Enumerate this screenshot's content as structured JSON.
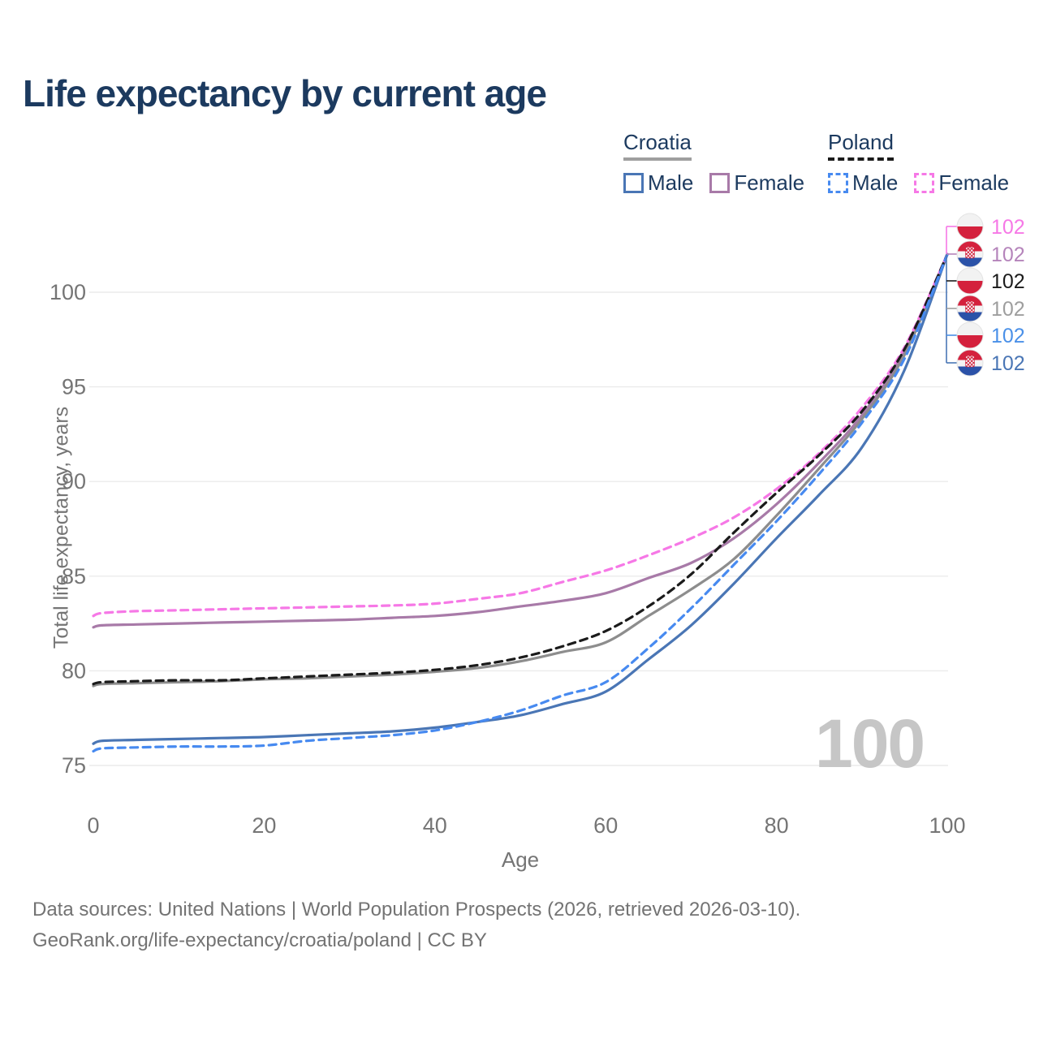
{
  "title": "Life expectancy by current age",
  "watermark": "100",
  "legend": {
    "groups": [
      {
        "country": "Croatia",
        "underline_color": "#9e9e9e",
        "underline_style": "solid",
        "items": [
          {
            "label": "Male",
            "color": "#4a76b5",
            "style": "solid"
          },
          {
            "label": "Female",
            "color": "#a87aa8",
            "style": "solid"
          }
        ]
      },
      {
        "country": "Poland",
        "underline_color": "#1b1b1b",
        "underline_style": "dashed",
        "items": [
          {
            "label": "Male",
            "color": "#478af0",
            "style": "dashed"
          },
          {
            "label": "Female",
            "color": "#f678e6",
            "style": "dashed"
          }
        ]
      }
    ]
  },
  "y_axis": {
    "label": "Total life expectancy, years"
  },
  "x_axis": {
    "label": "Age"
  },
  "end_labels": [
    {
      "label": "102",
      "series": "Poland Female",
      "flag": "poland",
      "color": "#f678e6"
    },
    {
      "label": "102",
      "series": "Croatia Female",
      "flag": "croatia",
      "color": "#b584bb"
    },
    {
      "label": "102",
      "series": "Poland Both sexes",
      "flag": "poland",
      "color": "#1b1b1b"
    },
    {
      "label": "102",
      "series": "Croatia Both sexes",
      "flag": "croatia",
      "color": "#9e9e9e"
    },
    {
      "label": "102",
      "series": "Poland Male",
      "flag": "poland",
      "color": "#4a90e8"
    },
    {
      "label": "102",
      "series": "Croatia Male",
      "flag": "croatia",
      "color": "#4a76b5"
    }
  ],
  "footer": {
    "line1": "Data sources: United Nations | World Population Prospects (2026, retrieved 2026-03-10).",
    "line2": "GeoRank.org/life-expectancy/croatia/poland | CC BY"
  },
  "chart_data": {
    "type": "line",
    "title": "Life expectancy by current age",
    "xlabel": "Age",
    "ylabel": "Total life expectancy, years",
    "xlim": [
      0,
      100
    ],
    "ylim": [
      75,
      103
    ],
    "x_ticks": [
      0,
      20,
      40,
      60,
      80,
      100
    ],
    "y_ticks": [
      75,
      80,
      85,
      90,
      95,
      100
    ],
    "grid": "horizontal",
    "x": [
      0,
      1,
      5,
      10,
      15,
      20,
      25,
      30,
      35,
      40,
      45,
      50,
      55,
      60,
      65,
      70,
      75,
      80,
      85,
      90,
      95,
      100
    ],
    "series": [
      {
        "name": "Croatia Female",
        "country": "Croatia",
        "sex": "Female",
        "style": "solid",
        "color": "#a87aa8",
        "values": [
          82.3,
          82.4,
          82.45,
          82.5,
          82.55,
          82.6,
          82.65,
          82.7,
          82.8,
          82.9,
          83.1,
          83.4,
          83.7,
          84.1,
          84.9,
          85.7,
          87.0,
          88.8,
          91.0,
          93.5,
          96.9,
          102
        ]
      },
      {
        "name": "Croatia Both sexes",
        "country": "Croatia",
        "sex": "Both",
        "style": "solid",
        "color": "#8d8d8d",
        "values": [
          79.2,
          79.3,
          79.35,
          79.4,
          79.45,
          79.55,
          79.6,
          79.7,
          79.8,
          79.95,
          80.15,
          80.5,
          81.0,
          81.5,
          82.9,
          84.3,
          85.9,
          88.2,
          90.7,
          93.3,
          96.7,
          102
        ]
      },
      {
        "name": "Croatia Male",
        "country": "Croatia",
        "sex": "Male",
        "style": "solid",
        "color": "#4a76b5",
        "values": [
          76.15,
          76.3,
          76.35,
          76.4,
          76.45,
          76.5,
          76.6,
          76.7,
          76.8,
          77.0,
          77.3,
          77.65,
          78.25,
          78.9,
          80.6,
          82.4,
          84.6,
          87.0,
          89.3,
          91.8,
          95.9,
          102
        ]
      },
      {
        "name": "Poland Female",
        "country": "Poland",
        "sex": "Female",
        "style": "dashed",
        "color": "#f678e6",
        "values": [
          82.9,
          83.05,
          83.15,
          83.2,
          83.25,
          83.3,
          83.35,
          83.4,
          83.45,
          83.55,
          83.8,
          84.1,
          84.7,
          85.3,
          86.1,
          87.0,
          88.1,
          89.6,
          91.5,
          93.9,
          97.1,
          102
        ]
      },
      {
        "name": "Poland Both sexes",
        "country": "Poland",
        "sex": "Both",
        "style": "dashed",
        "color": "#1b1b1b",
        "values": [
          79.3,
          79.4,
          79.45,
          79.5,
          79.5,
          79.6,
          79.7,
          79.8,
          79.9,
          80.05,
          80.3,
          80.7,
          81.3,
          82.1,
          83.4,
          85.1,
          87.3,
          89.4,
          91.4,
          93.7,
          97.0,
          102
        ]
      },
      {
        "name": "Poland Male",
        "country": "Poland",
        "sex": "Male",
        "style": "dashed",
        "color": "#478af0",
        "values": [
          75.75,
          75.9,
          75.95,
          76.0,
          76.0,
          76.05,
          76.3,
          76.45,
          76.6,
          76.85,
          77.3,
          77.9,
          78.7,
          79.4,
          81.2,
          83.3,
          85.6,
          87.9,
          90.4,
          93.1,
          96.5,
          102
        ]
      }
    ]
  }
}
